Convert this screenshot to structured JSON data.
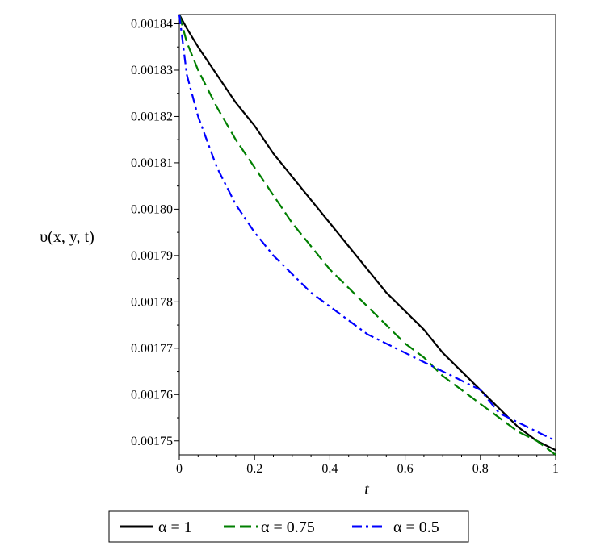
{
  "chart_data": {
    "type": "line",
    "xlabel": "t",
    "ylabel": "υ(x, y, t)",
    "xlim": [
      0,
      1
    ],
    "ylim": [
      0.001747,
      0.001842
    ],
    "x_ticks": [
      0,
      0.2,
      0.4,
      0.6,
      0.8,
      1
    ],
    "x_tick_labels": [
      "0",
      "0.2",
      "0.4",
      "0.6",
      "0.8",
      "1"
    ],
    "y_ticks": [
      0.00175,
      0.00176,
      0.00177,
      0.00178,
      0.00179,
      0.0018,
      0.00181,
      0.00182,
      0.00183,
      0.00184
    ],
    "y_tick_labels": [
      "0.00175",
      "0.00176",
      "0.00177",
      "0.00178",
      "0.00179",
      "0.00180",
      "0.00181",
      "0.00182",
      "0.00183",
      "0.00184"
    ],
    "grid": false,
    "legend_position": "bottom",
    "x": [
      0,
      0.02,
      0.05,
      0.1,
      0.15,
      0.2,
      0.25,
      0.3,
      0.35,
      0.4,
      0.45,
      0.5,
      0.55,
      0.6,
      0.65,
      0.7,
      0.75,
      0.8,
      0.85,
      0.9,
      0.95,
      1
    ],
    "series": [
      {
        "name": "α = 1",
        "color": "#000000",
        "dash": "solid",
        "values": [
          0.001842,
          0.001839,
          0.001835,
          0.001829,
          0.001823,
          0.001818,
          0.001812,
          0.001807,
          0.001802,
          0.001797,
          0.001792,
          0.001787,
          0.001782,
          0.001778,
          0.001774,
          0.001769,
          0.001765,
          0.001761,
          0.001757,
          0.001753,
          0.00175,
          0.001748
        ]
      },
      {
        "name": "α = 0.75",
        "color": "#007f00",
        "dash": "dashed",
        "values": [
          0.001842,
          0.001836,
          0.00183,
          0.001822,
          0.001815,
          0.001809,
          0.001803,
          0.001797,
          0.001792,
          0.001787,
          0.001783,
          0.001779,
          0.001775,
          0.001771,
          0.001768,
          0.001764,
          0.001761,
          0.001758,
          0.001755,
          0.001752,
          0.00175,
          0.001747
        ]
      },
      {
        "name": "α = 0.5",
        "color": "#0000ff",
        "dash": "dashdot",
        "values": [
          0.001842,
          0.001829,
          0.00182,
          0.001809,
          0.001801,
          0.001795,
          0.00179,
          0.001786,
          0.001782,
          0.001779,
          0.001776,
          0.001773,
          0.001771,
          0.001769,
          0.001767,
          0.001765,
          0.001763,
          0.001761,
          0.001756,
          0.001754,
          0.001752,
          0.00175
        ]
      }
    ]
  }
}
